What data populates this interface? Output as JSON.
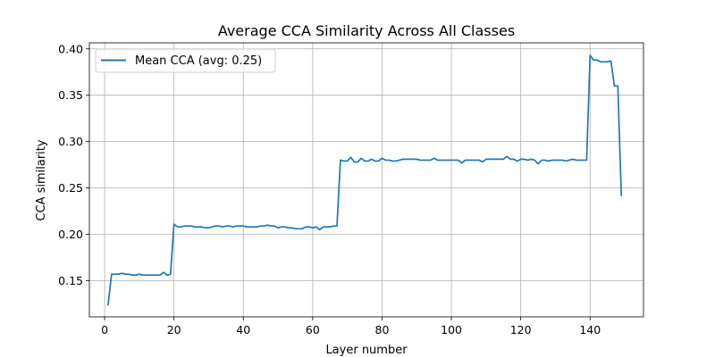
{
  "chart_data": {
    "type": "line",
    "title": "Average CCA Similarity Across All Classes",
    "xlabel": "Layer number",
    "ylabel": "CCA similarity",
    "xlim": [
      -4.4,
      155.4
    ],
    "ylim": [
      0.111,
      0.4065
    ],
    "xticks": [
      0,
      20,
      40,
      60,
      80,
      100,
      120,
      140
    ],
    "xtick_labels": [
      "0",
      "20",
      "40",
      "60",
      "80",
      "100",
      "120",
      "140"
    ],
    "yticks": [
      0.15,
      0.2,
      0.25,
      0.3,
      0.35,
      0.4
    ],
    "ytick_labels": [
      "0.15",
      "0.20",
      "0.25",
      "0.30",
      "0.35",
      "0.40"
    ],
    "grid": true,
    "legend_position": "top-left",
    "series": [
      {
        "name": "Mean CCA (avg: 0.25)",
        "color": "#1f77b4",
        "x": [
          1,
          2,
          3,
          4,
          5,
          6,
          7,
          8,
          9,
          10,
          11,
          12,
          13,
          14,
          15,
          16,
          17,
          18,
          19,
          20,
          21,
          22,
          23,
          24,
          25,
          26,
          27,
          28,
          29,
          30,
          31,
          32,
          33,
          34,
          35,
          36,
          37,
          38,
          39,
          40,
          41,
          42,
          43,
          44,
          45,
          46,
          47,
          48,
          49,
          50,
          51,
          52,
          53,
          54,
          55,
          56,
          57,
          58,
          59,
          60,
          61,
          62,
          63,
          64,
          65,
          66,
          67,
          68,
          69,
          70,
          71,
          72,
          73,
          74,
          75,
          76,
          77,
          78,
          79,
          80,
          81,
          82,
          83,
          84,
          85,
          86,
          87,
          88,
          89,
          90,
          91,
          92,
          93,
          94,
          95,
          96,
          97,
          98,
          99,
          100,
          101,
          102,
          103,
          104,
          105,
          106,
          107,
          108,
          109,
          110,
          111,
          112,
          113,
          114,
          115,
          116,
          117,
          118,
          119,
          120,
          121,
          122,
          123,
          124,
          125,
          126,
          127,
          128,
          129,
          130,
          131,
          132,
          133,
          134,
          135,
          136,
          137,
          138,
          139,
          140,
          141,
          142,
          143,
          144,
          145,
          146,
          147,
          148,
          149
        ],
        "y": [
          0.124,
          0.157,
          0.157,
          0.157,
          0.158,
          0.157,
          0.157,
          0.156,
          0.156,
          0.157,
          0.156,
          0.156,
          0.156,
          0.156,
          0.156,
          0.156,
          0.159,
          0.156,
          0.157,
          0.211,
          0.208,
          0.208,
          0.209,
          0.209,
          0.209,
          0.208,
          0.208,
          0.208,
          0.207,
          0.207,
          0.208,
          0.209,
          0.209,
          0.208,
          0.209,
          0.209,
          0.208,
          0.209,
          0.209,
          0.209,
          0.208,
          0.208,
          0.208,
          0.208,
          0.209,
          0.209,
          0.21,
          0.209,
          0.209,
          0.207,
          0.208,
          0.208,
          0.207,
          0.207,
          0.206,
          0.206,
          0.206,
          0.208,
          0.208,
          0.207,
          0.208,
          0.205,
          0.208,
          0.208,
          0.208,
          0.209,
          0.209,
          0.28,
          0.279,
          0.279,
          0.283,
          0.278,
          0.278,
          0.282,
          0.279,
          0.279,
          0.281,
          0.279,
          0.279,
          0.282,
          0.28,
          0.28,
          0.279,
          0.279,
          0.28,
          0.281,
          0.281,
          0.281,
          0.281,
          0.281,
          0.28,
          0.28,
          0.28,
          0.28,
          0.282,
          0.28,
          0.28,
          0.28,
          0.28,
          0.28,
          0.28,
          0.28,
          0.277,
          0.28,
          0.28,
          0.28,
          0.28,
          0.28,
          0.278,
          0.281,
          0.281,
          0.281,
          0.281,
          0.281,
          0.281,
          0.284,
          0.281,
          0.281,
          0.279,
          0.281,
          0.281,
          0.28,
          0.281,
          0.28,
          0.276,
          0.28,
          0.28,
          0.279,
          0.28,
          0.28,
          0.28,
          0.28,
          0.279,
          0.28,
          0.281,
          0.28,
          0.28,
          0.28,
          0.28,
          0.393,
          0.388,
          0.388,
          0.386,
          0.386,
          0.386,
          0.387,
          0.36,
          0.36,
          0.242
        ]
      }
    ]
  }
}
